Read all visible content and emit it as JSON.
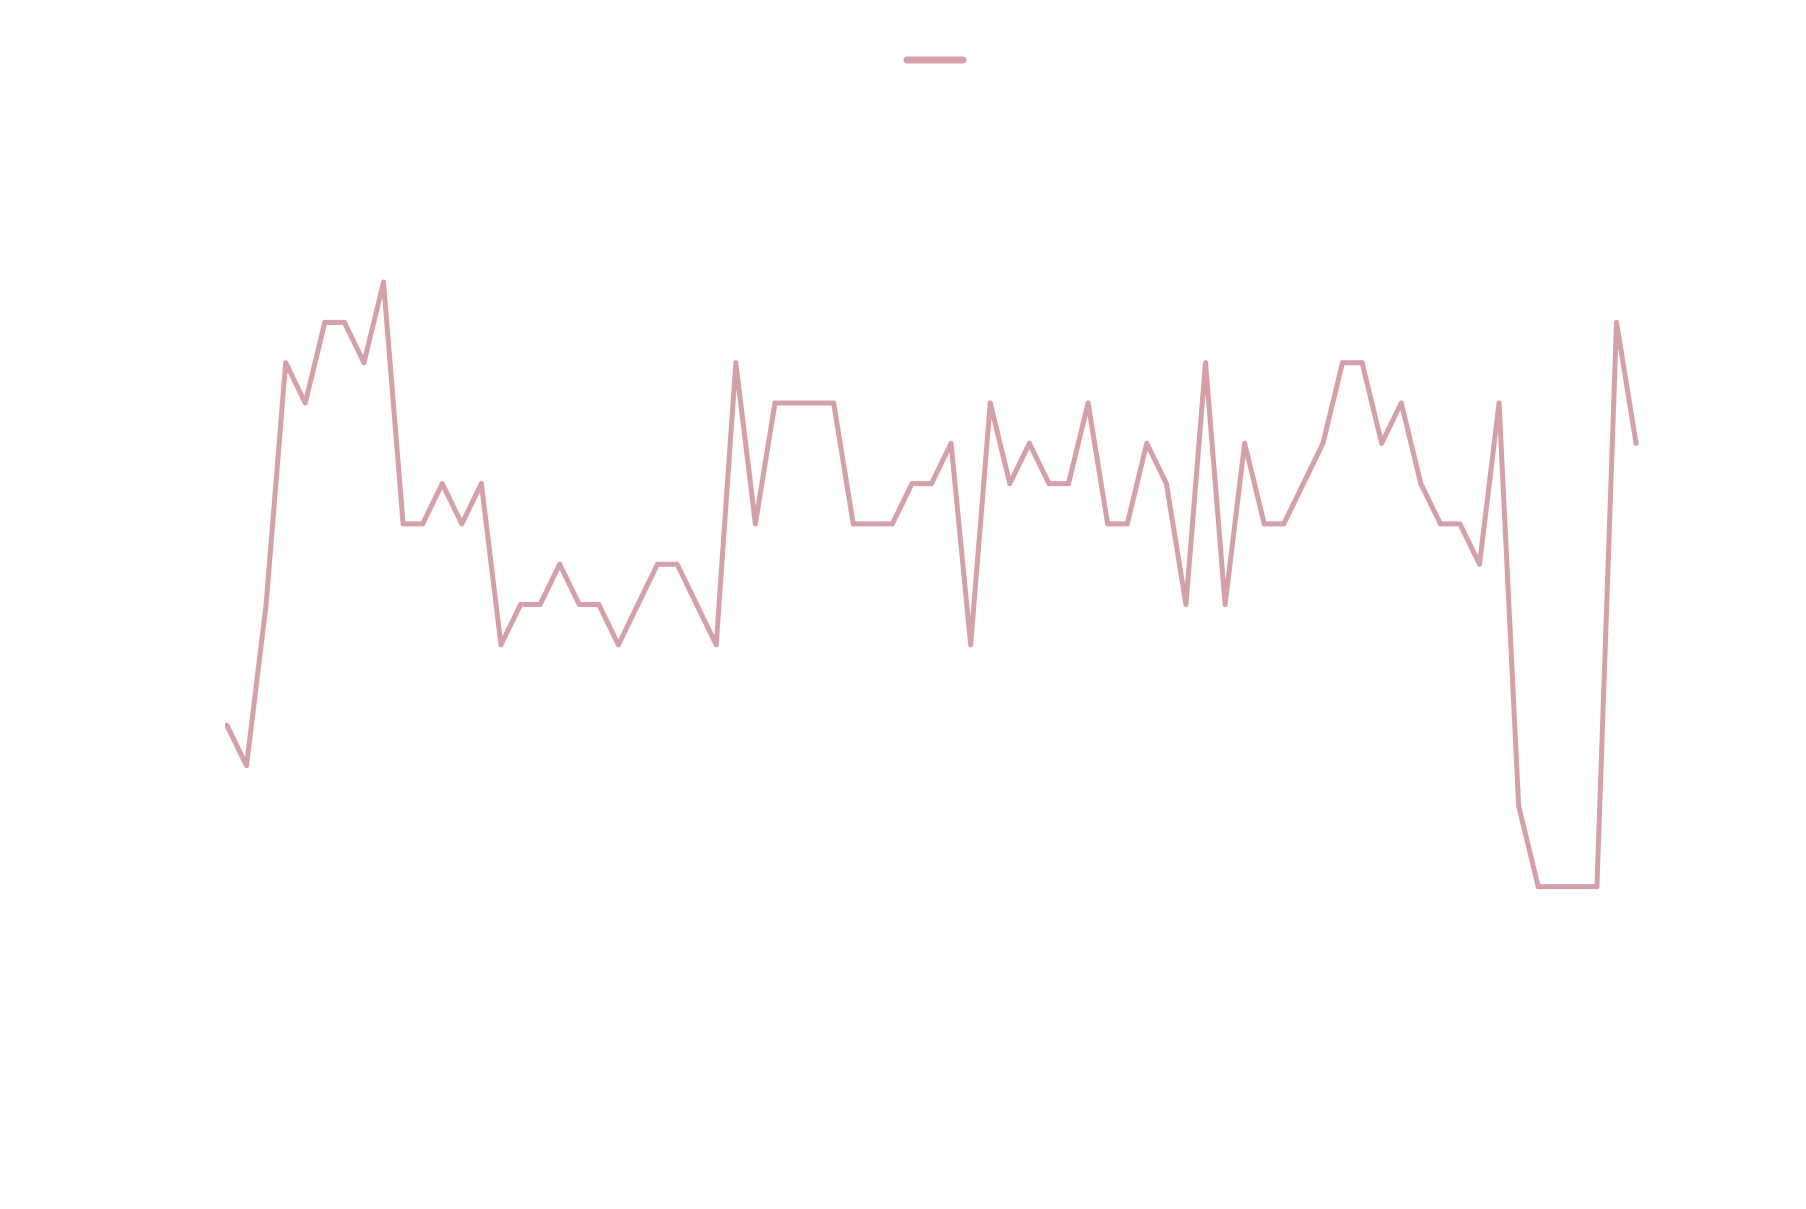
{
  "chart_data": {
    "type": "line",
    "title": "",
    "xlabel": "",
    "ylabel": "",
    "grid": false,
    "legend_placement": "top-center",
    "series": [
      {
        "name": "",
        "color": "#d4a1a8",
        "values": [
          12,
          11,
          15,
          21,
          20,
          22,
          22,
          21,
          23,
          17,
          17,
          18,
          17,
          18,
          14,
          15,
          15,
          16,
          15,
          15,
          14,
          15,
          16,
          16,
          15,
          14,
          21,
          17,
          20,
          20,
          20,
          20,
          17,
          17,
          17,
          18,
          18,
          19,
          14,
          20,
          18,
          19,
          18,
          18,
          20,
          17,
          17,
          19,
          18,
          15,
          21,
          15,
          19,
          17,
          17,
          18,
          19,
          21,
          21,
          19,
          20,
          18,
          17,
          17,
          16,
          20,
          10,
          8,
          8,
          8,
          8,
          22,
          19
        ]
      }
    ],
    "x": [
      0,
      1,
      2,
      3,
      4,
      5,
      6,
      7,
      8,
      9,
      10,
      11,
      12,
      13,
      14,
      15,
      16,
      17,
      18,
      19,
      20,
      21,
      22,
      23,
      24,
      25,
      26,
      27,
      28,
      29,
      30,
      31,
      32,
      33,
      34,
      35,
      36,
      37,
      38,
      39,
      40,
      41,
      42,
      43,
      44,
      45,
      46,
      47,
      48,
      49,
      50,
      51,
      52,
      53,
      54,
      55,
      56,
      57,
      58,
      59,
      60,
      61,
      62,
      63,
      64,
      65,
      66,
      67,
      68,
      69,
      70,
      71,
      72
    ],
    "xlim": [
      -0.1,
      72.2
    ],
    "ylim": [
      0,
      30
    ]
  }
}
